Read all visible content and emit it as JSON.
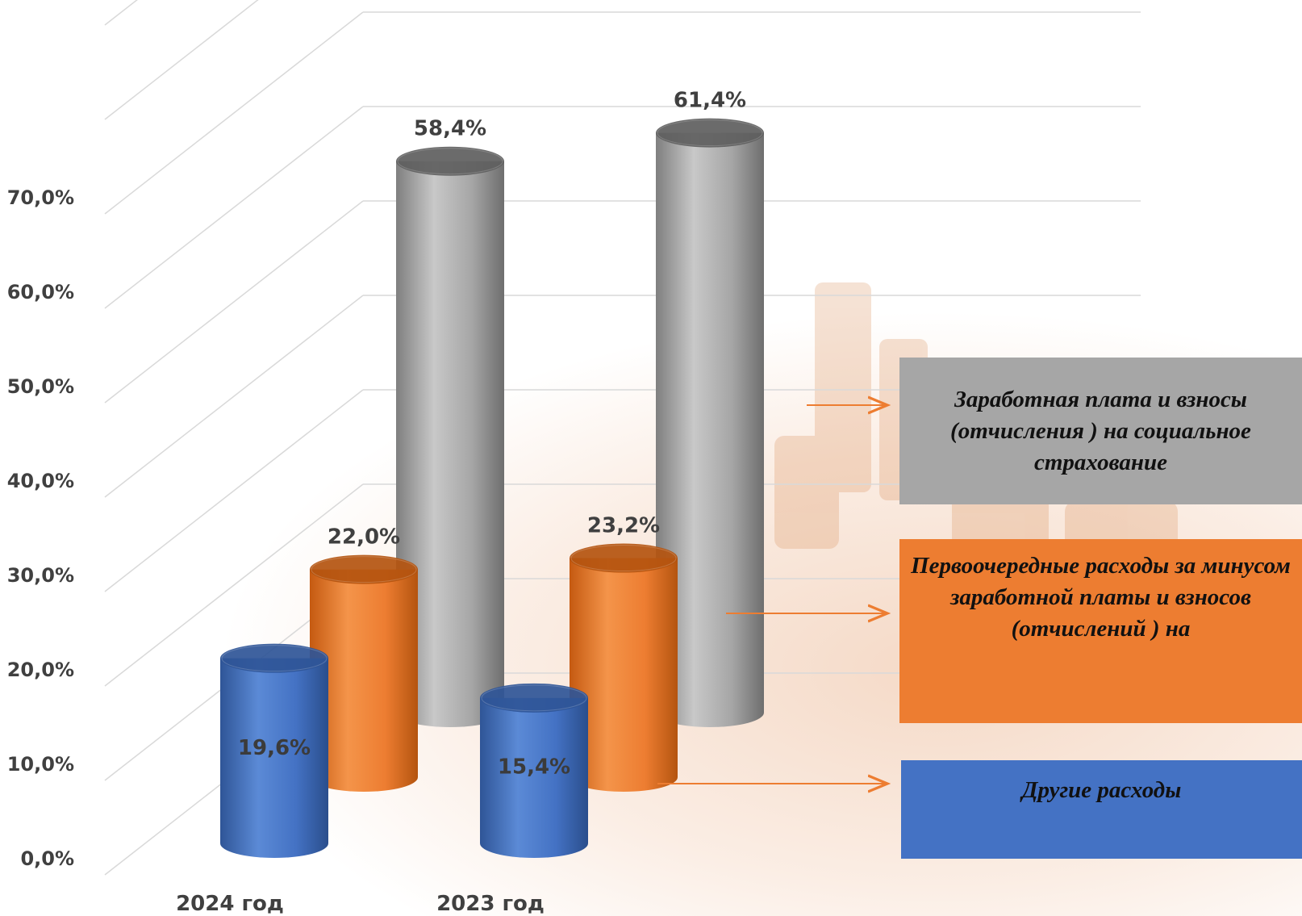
{
  "chart_data": {
    "type": "bar",
    "categories": [
      "2024 год",
      "2023 год"
    ],
    "series": [
      {
        "name": "Заработная плата и взносы (отчисления ) на социальное страхование",
        "values": [
          58.4,
          61.4
        ],
        "labels": [
          "58,4%",
          "61,4%"
        ],
        "color": "#a6a6a6"
      },
      {
        "name": "Первоочередные расходы за минусом заработной платы и взносов (отчислений ) на",
        "values": [
          22.0,
          23.2
        ],
        "labels": [
          "22,0%",
          "23,2%"
        ],
        "color": "#ed7d31"
      },
      {
        "name": "Другие расходы",
        "values": [
          19.6,
          15.4
        ],
        "labels": [
          "19,6%",
          "15,4%"
        ],
        "color": "#4472c4"
      }
    ],
    "y_ticks": [
      "0,0%",
      "10,0%",
      "20,0%",
      "30,0%",
      "40,0%",
      "50,0%",
      "60,0%",
      "70,0%"
    ],
    "ylim": [
      0,
      90
    ],
    "grid": true,
    "legend_position": "right"
  },
  "legend": {
    "grey": "Заработная плата и взносы (отчисления ) на социальное страхование",
    "orange": "Первоочередные расходы за минусом заработной платы и  взносов (отчислений ) на",
    "blue": "Другие расходы"
  },
  "colors": {
    "grey_box": "#a6a6a6",
    "orange_box": "#ed7d31",
    "blue_box": "#4472c4",
    "arrow": "#ed7d31",
    "grid": "#d9d9d9",
    "label_text": "#404040"
  }
}
